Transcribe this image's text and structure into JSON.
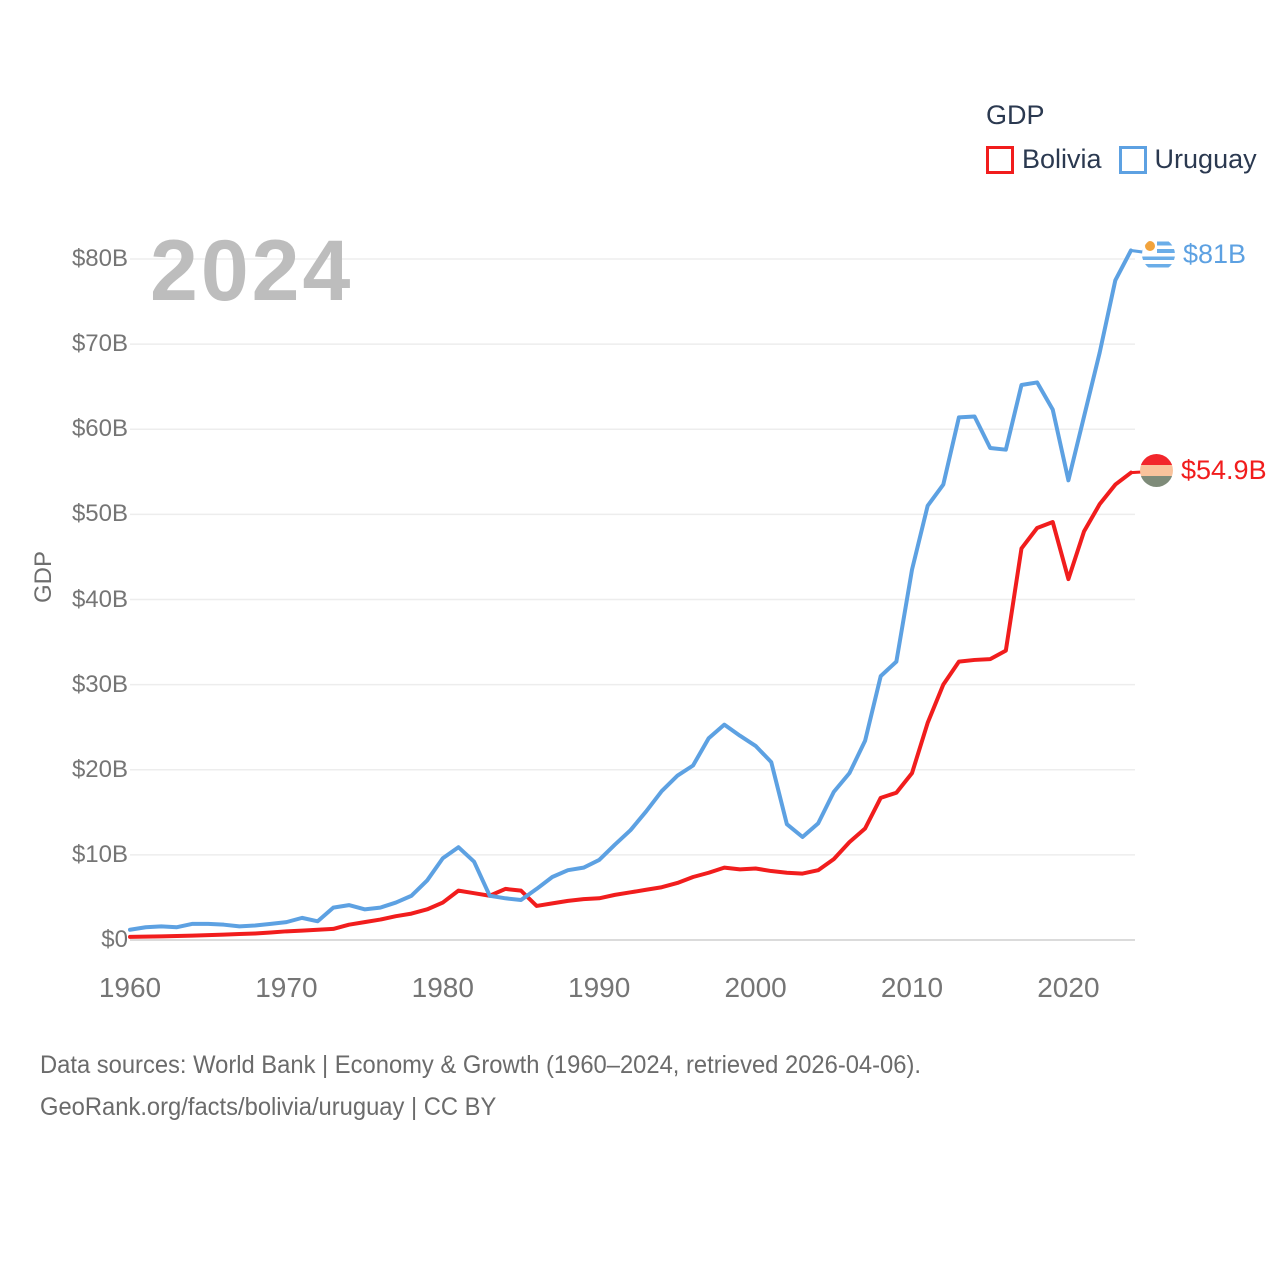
{
  "watermark": "2024",
  "legend": {
    "title": "GDP",
    "items": [
      {
        "label": "Bolivia",
        "color": "#f11d1d"
      },
      {
        "label": "Uruguay",
        "color": "#5da1e2"
      }
    ]
  },
  "y_axis": {
    "title": "GDP",
    "ticks": [
      {
        "value": 0,
        "label": "$0"
      },
      {
        "value": 10,
        "label": "$10B"
      },
      {
        "value": 20,
        "label": "$20B"
      },
      {
        "value": 30,
        "label": "$30B"
      },
      {
        "value": 40,
        "label": "$40B"
      },
      {
        "value": 50,
        "label": "$50B"
      },
      {
        "value": 60,
        "label": "$60B"
      },
      {
        "value": 70,
        "label": "$70B"
      },
      {
        "value": 80,
        "label": "$80B"
      }
    ]
  },
  "x_axis": {
    "ticks": [
      "1960",
      "1970",
      "1980",
      "1990",
      "2000",
      "2010",
      "2020"
    ]
  },
  "end_labels": {
    "uruguay": {
      "text": "$81B",
      "color": "#5da1e2",
      "flag": "uruguay-flag"
    },
    "bolivia": {
      "text": "$54.9B",
      "color": "#f11d1d",
      "flag": "bolivia-flag"
    }
  },
  "flag_colors": {
    "uruguay_stripe_blue": "#6aade8",
    "uruguay_white": "#ffffff",
    "uruguay_sun": "#f2a33c",
    "bolivia_red": "#f2262b",
    "bolivia_yellow": "#f9c39c",
    "bolivia_green": "#7e8b79"
  },
  "footer": {
    "line1": "Data sources: World Bank | Economy & Growth (1960–2024, retrieved 2026-04-06).",
    "line2": "GeoRank.org/facts/bolivia/uruguay | CC BY"
  },
  "chart_data": {
    "type": "line",
    "title": "GDP",
    "xlabel": "",
    "ylabel": "GDP",
    "ylim": [
      0,
      85
    ],
    "grid": "horizontal",
    "legend_position": "top-right",
    "x": [
      1960,
      1961,
      1962,
      1963,
      1964,
      1965,
      1966,
      1967,
      1968,
      1969,
      1970,
      1971,
      1972,
      1973,
      1974,
      1975,
      1976,
      1977,
      1978,
      1979,
      1980,
      1981,
      1982,
      1983,
      1984,
      1985,
      1986,
      1987,
      1988,
      1989,
      1990,
      1991,
      1992,
      1993,
      1994,
      1995,
      1996,
      1997,
      1998,
      1999,
      2000,
      2001,
      2002,
      2003,
      2004,
      2005,
      2006,
      2007,
      2008,
      2009,
      2010,
      2011,
      2012,
      2013,
      2014,
      2015,
      2016,
      2017,
      2018,
      2019,
      2020,
      2021,
      2022,
      2023,
      2024
    ],
    "series": [
      {
        "name": "Bolivia",
        "color": "#f11d1d",
        "unit": "billion USD",
        "values": [
          0.37,
          0.4,
          0.43,
          0.47,
          0.52,
          0.57,
          0.63,
          0.7,
          0.77,
          0.88,
          1.02,
          1.1,
          1.2,
          1.3,
          1.8,
          2.1,
          2.4,
          2.8,
          3.1,
          3.6,
          4.4,
          5.8,
          5.5,
          5.2,
          6.0,
          5.8,
          4.0,
          4.3,
          4.6,
          4.8,
          4.9,
          5.3,
          5.6,
          5.9,
          6.2,
          6.7,
          7.4,
          7.9,
          8.5,
          8.3,
          8.4,
          8.1,
          7.9,
          7.8,
          8.2,
          9.5,
          11.5,
          13.1,
          16.7,
          17.3,
          19.6,
          25.5,
          30.0,
          32.7,
          32.9,
          33.0,
          34.0,
          46.0,
          48.4,
          49.1,
          42.4,
          48.0,
          51.2,
          53.5,
          54.9
        ]
      },
      {
        "name": "Uruguay",
        "color": "#5da1e2",
        "unit": "billion USD",
        "values": [
          1.2,
          1.5,
          1.6,
          1.5,
          1.9,
          1.9,
          1.8,
          1.6,
          1.7,
          1.9,
          2.1,
          2.6,
          2.2,
          3.8,
          4.1,
          3.6,
          3.8,
          4.4,
          5.2,
          7.0,
          9.6,
          10.9,
          9.2,
          5.2,
          4.9,
          4.7,
          6.0,
          7.4,
          8.2,
          8.5,
          9.4,
          11.2,
          12.9,
          15.1,
          17.5,
          19.3,
          20.5,
          23.7,
          25.3,
          24.0,
          22.8,
          20.9,
          13.6,
          12.1,
          13.7,
          17.4,
          19.6,
          23.4,
          31.0,
          32.7,
          43.5,
          51.0,
          53.5,
          61.4,
          61.5,
          57.8,
          57.6,
          65.2,
          65.5,
          62.3,
          54.0,
          61.5,
          69.0,
          77.5,
          81.0
        ]
      }
    ]
  }
}
